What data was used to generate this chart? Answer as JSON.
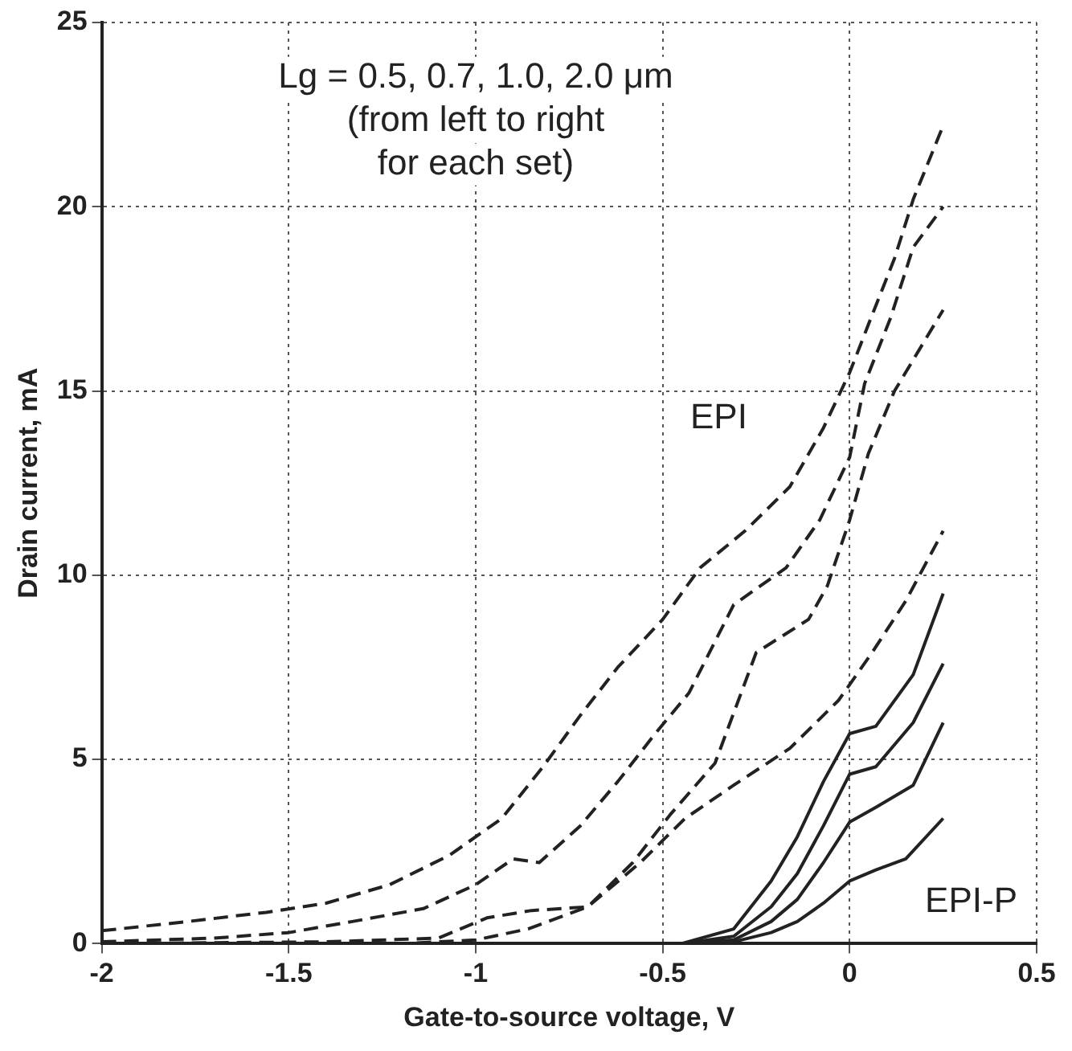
{
  "chart_data": {
    "type": "line",
    "xlabel": "Gate-to-source voltage, V",
    "ylabel": "Drain current, mA",
    "xlim": [
      -2,
      0.5
    ],
    "xticks": [
      -2,
      -1.5,
      -1,
      -0.5,
      0,
      0.5
    ],
    "ylim": [
      0,
      25
    ],
    "yticks": [
      0,
      5,
      10,
      15,
      20,
      25
    ],
    "grid": true,
    "legend": false,
    "marker": "none",
    "annotations": [
      "Lg = 0.5, 0.7, 1.0, 2.0 μm\n(from left to right\nfor each set)",
      "EPI",
      "EPI-P"
    ],
    "series": [
      {
        "color": "#222222",
        "line_style": "dashed",
        "x": [
          -2,
          -1.77,
          -1.56,
          -1.4,
          -1.23,
          -1.07,
          -0.93,
          -0.82,
          -0.72,
          -0.62,
          -0.5,
          -0.4,
          -0.28,
          -0.16,
          -0.07,
          0,
          0.05,
          0.12,
          0.17,
          0.25
        ],
        "values": [
          0.35,
          0.6,
          0.85,
          1.1,
          1.6,
          2.4,
          3.4,
          4.8,
          6.2,
          7.5,
          8.8,
          10.2,
          11.2,
          12.4,
          14,
          15.5,
          16.8,
          18.6,
          20.2,
          22.2
        ]
      },
      {
        "color": "#222222",
        "line_style": "dashed",
        "x": [
          -2,
          -1.7,
          -1.5,
          -1.33,
          -1.14,
          -1,
          -0.9,
          -0.83,
          -0.72,
          -0.62,
          -0.52,
          -0.43,
          -0.31,
          -0.17,
          -0.08,
          0,
          0.04,
          0.11,
          0.17,
          0.25
        ],
        "values": [
          0.05,
          0.15,
          0.3,
          0.6,
          0.95,
          1.6,
          2.3,
          2.2,
          3.2,
          4.4,
          5.7,
          6.8,
          9.2,
          10.2,
          11.5,
          13.2,
          15.2,
          17,
          18.9,
          20
        ]
      },
      {
        "color": "#222222",
        "line_style": "dashed",
        "x": [
          -2,
          -1.4,
          -1.1,
          -0.97,
          -0.85,
          -0.7,
          -0.58,
          -0.48,
          -0.36,
          -0.25,
          -0.11,
          -0.06,
          0,
          0.05,
          0.12,
          0.25
        ],
        "values": [
          0,
          0.05,
          0.15,
          0.7,
          0.9,
          1,
          2.2,
          3.5,
          4.9,
          7.9,
          8.8,
          9.7,
          11.5,
          13.3,
          15,
          17.2
        ]
      },
      {
        "color": "#222222",
        "line_style": "dashed",
        "x": [
          -2,
          -1.2,
          -1,
          -0.86,
          -0.7,
          -0.56,
          -0.44,
          -0.31,
          -0.16,
          -0.03,
          0.06,
          0.15,
          0.25
        ],
        "values": [
          0,
          0,
          0.1,
          0.4,
          1,
          2.2,
          3.4,
          4.3,
          5.3,
          6.6,
          7.9,
          9.3,
          11.2
        ]
      },
      {
        "color": "#222222",
        "line_style": "solid",
        "x": [
          -0.45,
          -0.31,
          -0.21,
          -0.14,
          -0.07,
          0,
          0.07,
          0.17,
          0.25
        ],
        "values": [
          0,
          0.4,
          1.7,
          2.9,
          4.4,
          5.7,
          5.9,
          7.3,
          9.5
        ]
      },
      {
        "color": "#222222",
        "line_style": "solid",
        "x": [
          -0.45,
          -0.31,
          -0.21,
          -0.14,
          -0.07,
          0,
          0.07,
          0.17,
          0.25
        ],
        "values": [
          0,
          0.2,
          1,
          1.9,
          3.2,
          4.6,
          4.8,
          6,
          7.6
        ]
      },
      {
        "color": "#222222",
        "line_style": "solid",
        "x": [
          -0.45,
          -0.31,
          -0.21,
          -0.14,
          -0.07,
          0,
          0.07,
          0.17,
          0.25
        ],
        "values": [
          0,
          0.1,
          0.6,
          1.2,
          2.2,
          3.3,
          3.7,
          4.3,
          6
        ]
      },
      {
        "color": "#222222",
        "line_style": "solid",
        "x": [
          -0.45,
          -0.31,
          -0.21,
          -0.14,
          -0.07,
          0,
          0.07,
          0.15,
          0.25
        ],
        "values": [
          0,
          0.05,
          0.3,
          0.6,
          1.1,
          1.7,
          2,
          2.3,
          3.4
        ]
      }
    ]
  }
}
